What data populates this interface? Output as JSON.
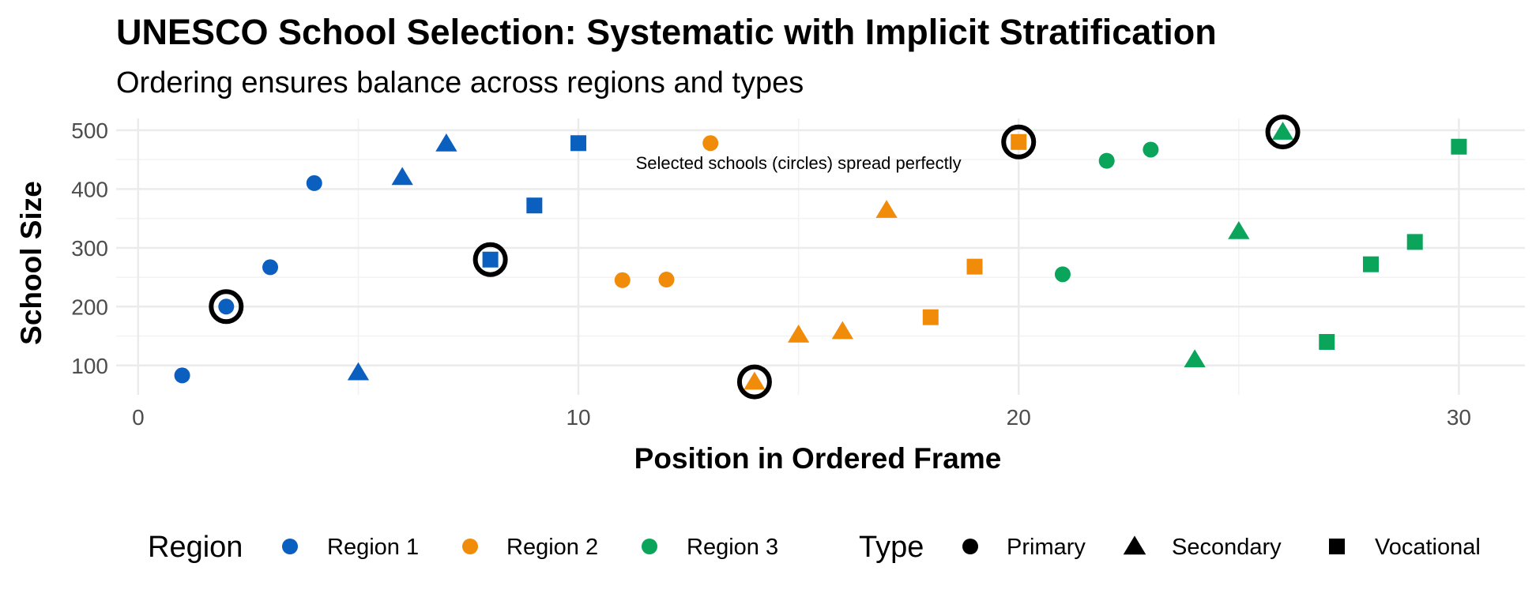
{
  "chart_data": {
    "type": "scatter",
    "title": "UNESCO School Selection: Systematic with Implicit Stratification",
    "subtitle": "Ordering ensures balance across regions and types",
    "xlabel": "Position in Ordered Frame",
    "ylabel": "School Size",
    "xlim": [
      -0.5,
      31.5
    ],
    "ylim": [
      50,
      520
    ],
    "x_ticks": [
      0,
      10,
      20,
      30
    ],
    "y_ticks": [
      100,
      200,
      300,
      400,
      500
    ],
    "grid": true,
    "annotation": {
      "text": "Selected schools (circles) spread perfectly",
      "x": 15,
      "y": 445
    },
    "colors": {
      "Region 1": "#0a5fbf",
      "Region 2": "#f08c0a",
      "Region 3": "#0aa55a"
    },
    "points": [
      {
        "x": 1,
        "y": 83,
        "region": "Region 1",
        "type": "Primary",
        "selected": false
      },
      {
        "x": 2,
        "y": 200,
        "region": "Region 1",
        "type": "Primary",
        "selected": true
      },
      {
        "x": 3,
        "y": 267,
        "region": "Region 1",
        "type": "Primary",
        "selected": false
      },
      {
        "x": 4,
        "y": 410,
        "region": "Region 1",
        "type": "Primary",
        "selected": false
      },
      {
        "x": 5,
        "y": 88,
        "region": "Region 1",
        "type": "Secondary",
        "selected": false
      },
      {
        "x": 6,
        "y": 420,
        "region": "Region 1",
        "type": "Secondary",
        "selected": false
      },
      {
        "x": 7,
        "y": 477,
        "region": "Region 1",
        "type": "Secondary",
        "selected": false
      },
      {
        "x": 8,
        "y": 280,
        "region": "Region 1",
        "type": "Vocational",
        "selected": true
      },
      {
        "x": 9,
        "y": 372,
        "region": "Region 1",
        "type": "Vocational",
        "selected": false
      },
      {
        "x": 10,
        "y": 478,
        "region": "Region 1",
        "type": "Vocational",
        "selected": false
      },
      {
        "x": 11,
        "y": 245,
        "region": "Region 2",
        "type": "Primary",
        "selected": false
      },
      {
        "x": 12,
        "y": 246,
        "region": "Region 2",
        "type": "Primary",
        "selected": false
      },
      {
        "x": 13,
        "y": 478,
        "region": "Region 2",
        "type": "Primary",
        "selected": false
      },
      {
        "x": 14,
        "y": 72,
        "region": "Region 2",
        "type": "Secondary",
        "selected": true
      },
      {
        "x": 15,
        "y": 152,
        "region": "Region 2",
        "type": "Secondary",
        "selected": false
      },
      {
        "x": 16,
        "y": 158,
        "region": "Region 2",
        "type": "Secondary",
        "selected": false
      },
      {
        "x": 17,
        "y": 364,
        "region": "Region 2",
        "type": "Secondary",
        "selected": false
      },
      {
        "x": 18,
        "y": 182,
        "region": "Region 2",
        "type": "Vocational",
        "selected": false
      },
      {
        "x": 19,
        "y": 268,
        "region": "Region 2",
        "type": "Vocational",
        "selected": false
      },
      {
        "x": 20,
        "y": 480,
        "region": "Region 2",
        "type": "Vocational",
        "selected": true
      },
      {
        "x": 21,
        "y": 255,
        "region": "Region 3",
        "type": "Primary",
        "selected": false
      },
      {
        "x": 22,
        "y": 448,
        "region": "Region 3",
        "type": "Primary",
        "selected": false
      },
      {
        "x": 23,
        "y": 467,
        "region": "Region 3",
        "type": "Primary",
        "selected": false
      },
      {
        "x": 24,
        "y": 110,
        "region": "Region 3",
        "type": "Secondary",
        "selected": false
      },
      {
        "x": 25,
        "y": 328,
        "region": "Region 3",
        "type": "Secondary",
        "selected": false
      },
      {
        "x": 26,
        "y": 497,
        "region": "Region 3",
        "type": "Secondary",
        "selected": true
      },
      {
        "x": 27,
        "y": 140,
        "region": "Region 3",
        "type": "Vocational",
        "selected": false
      },
      {
        "x": 28,
        "y": 272,
        "region": "Region 3",
        "type": "Vocational",
        "selected": false
      },
      {
        "x": 29,
        "y": 310,
        "region": "Region 3",
        "type": "Vocational",
        "selected": false
      },
      {
        "x": 30,
        "y": 472,
        "region": "Region 3",
        "type": "Vocational",
        "selected": false
      }
    ],
    "legend": {
      "position": "bottom",
      "region": {
        "title": "Region",
        "items": [
          "Region 1",
          "Region 2",
          "Region 3"
        ]
      },
      "type": {
        "title": "Type",
        "items": [
          "Primary",
          "Secondary",
          "Vocational"
        ]
      }
    }
  }
}
